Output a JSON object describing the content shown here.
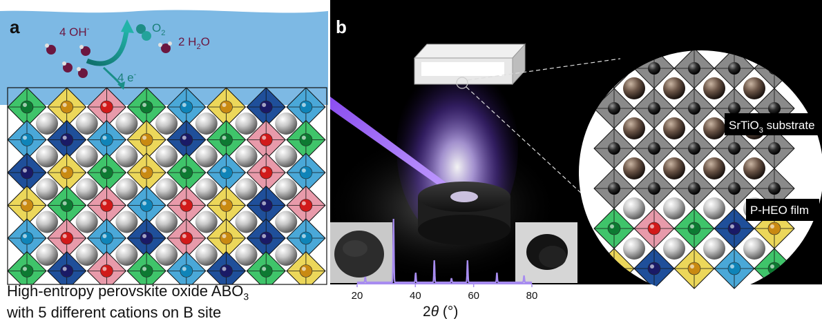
{
  "panel_a": {
    "label": "a",
    "reactants": "4 OH",
    "reactants_sup": "-",
    "electrons": "4 e",
    "electrons_sup": "-",
    "product_o2": "O",
    "product_o2_sub": "2",
    "product_h2o_pre": "2 H",
    "product_h2o_sub": "2",
    "product_h2o_post": "O",
    "caption_line1": "High-entropy perovskite oxide ABO",
    "caption_line1_sub": "3",
    "caption_line2": "with 5 different cations on B site"
  },
  "panel_b": {
    "label": "b",
    "substrate_label": "SrTiO",
    "substrate_sub": "3",
    "substrate_post": " substrate",
    "film_label": "P-HEO film",
    "xrd_xlabel_pre": "2",
    "xrd_xlabel_theta": "θ",
    "xrd_xlabel_post": " (°)",
    "xrd_ticks": [
      "20",
      "40",
      "60",
      "80"
    ]
  },
  "colors": {
    "water": "#7db9e4",
    "green": "#3fc46a",
    "yellow": "#ecd75a",
    "pink": "#e89aaa",
    "darkblue": "#1f4f9a",
    "lightblue": "#4aa8d8",
    "xrd": "#a78cf0",
    "laser": "#7a2fd6"
  }
}
